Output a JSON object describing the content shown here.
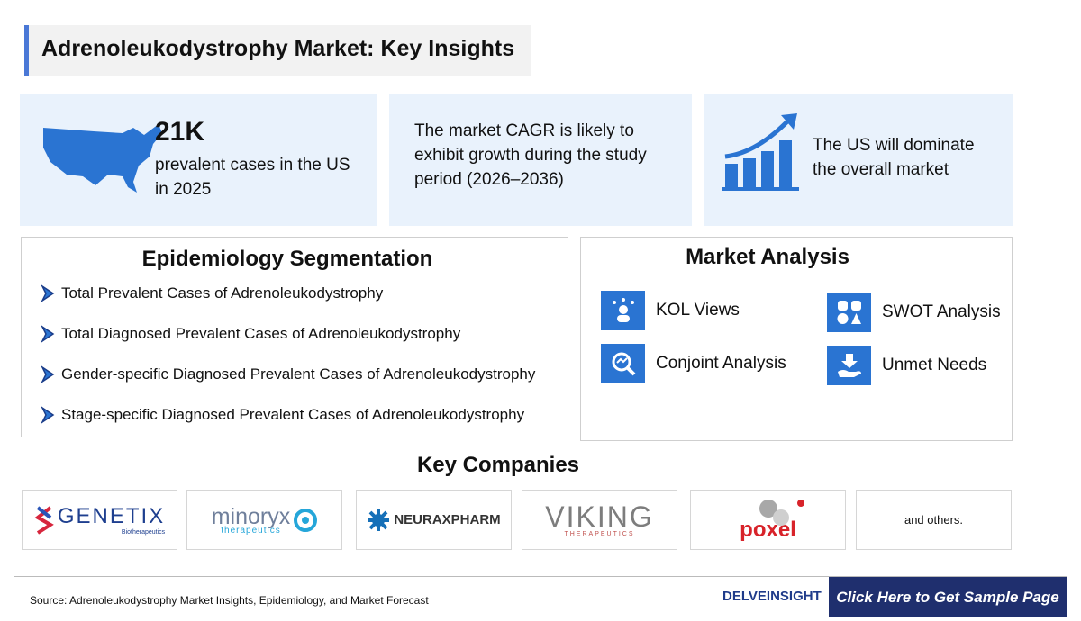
{
  "header": {
    "title": "Adrenoleukodystrophy Market: Key Insights"
  },
  "insights": [
    {
      "value": "21K",
      "text": "prevalent cases in the US in 2025"
    },
    {
      "text": "The market CAGR is likely to exhibit growth during the study period (2026–2036)"
    },
    {
      "text": "The US will dominate the overall market"
    }
  ],
  "epidemiology": {
    "title": "Epidemiology Segmentation",
    "items": [
      "Total Prevalent Cases of Adrenoleukodystrophy",
      "Total Diagnosed Prevalent Cases of Adrenoleukodystrophy",
      "Gender-specific Diagnosed Prevalent Cases of Adrenoleukodystrophy",
      "Stage-specific Diagnosed Prevalent Cases of Adrenoleukodystrophy"
    ]
  },
  "market_analysis": {
    "title": "Market Analysis",
    "items": [
      "KOL Views",
      "SWOT Analysis",
      "Conjoint Analysis",
      "Unmet Needs"
    ]
  },
  "key_companies": {
    "title": "Key Companies",
    "logos": [
      {
        "name": "GENETIX",
        "tagline": "Biotherapeutics"
      },
      {
        "name": "minoryx",
        "tagline": "therapeutics"
      },
      {
        "name": "NEURAXPHARM"
      },
      {
        "name": "VIKING",
        "tagline": "THERAPEUTICS"
      },
      {
        "name": "poxel"
      }
    ],
    "others": "and others."
  },
  "footer": {
    "source": "Source: Adrenoleukodystrophy Market Insights, Epidemiology, and Market Forecast",
    "brand": "DELVEINSIGHT",
    "button": "Click Here to Get Sample Page"
  }
}
